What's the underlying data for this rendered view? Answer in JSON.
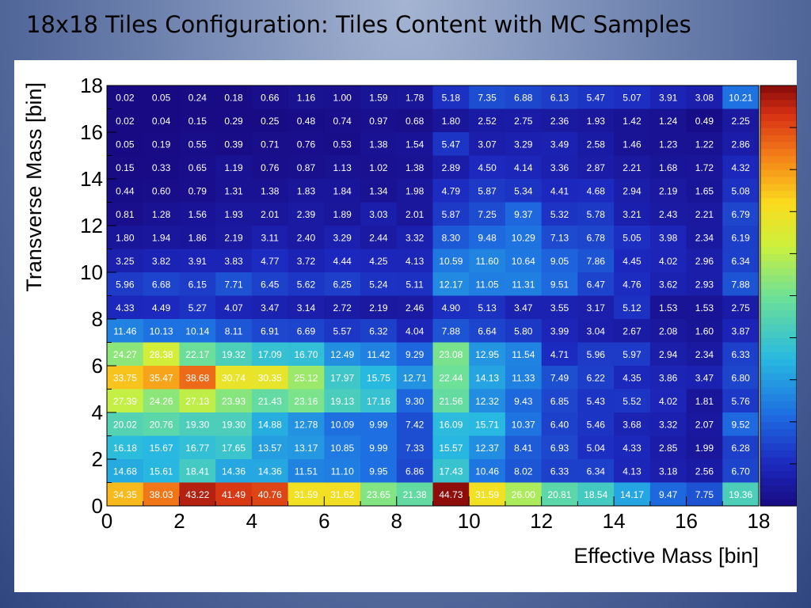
{
  "slide": {
    "title": "18x18 Tiles Configuration: Tiles Content with MC Samples"
  },
  "chart_data": {
    "type": "heatmap",
    "title": "",
    "xlabel": "Effective Mass [bin]",
    "ylabel": "Transverse Mass [bin]",
    "xlim": [
      0,
      18
    ],
    "ylim": [
      0,
      18
    ],
    "x_ticks": [
      0,
      2,
      4,
      6,
      8,
      10,
      12,
      14,
      16,
      18
    ],
    "y_ticks": [
      0,
      2,
      4,
      6,
      8,
      10,
      12,
      14,
      16,
      18
    ],
    "color_scale": "rainbow (dark blue = low, dark red = high)",
    "color_max": 45,
    "colorbar": "right",
    "rows_top_to_bottom": [
      [
        0.02,
        0.05,
        0.24,
        0.18,
        0.66,
        1.16,
        1.0,
        1.59,
        1.78,
        5.18,
        7.35,
        6.88,
        6.13,
        5.47,
        5.07,
        3.91,
        3.08,
        10.21
      ],
      [
        0.02,
        0.04,
        0.15,
        0.29,
        0.25,
        0.48,
        0.74,
        0.97,
        0.68,
        1.8,
        2.52,
        2.75,
        2.36,
        1.93,
        1.42,
        1.24,
        0.49,
        2.25
      ],
      [
        0.05,
        0.19,
        0.55,
        0.39,
        0.71,
        0.76,
        0.53,
        1.38,
        1.54,
        5.47,
        3.07,
        3.29,
        3.49,
        2.58,
        1.46,
        1.23,
        1.22,
        2.86
      ],
      [
        0.15,
        0.33,
        0.65,
        1.19,
        0.76,
        0.87,
        1.13,
        1.02,
        1.38,
        2.89,
        4.5,
        4.14,
        3.36,
        2.87,
        2.21,
        1.68,
        1.72,
        4.32
      ],
      [
        0.44,
        0.6,
        0.79,
        1.31,
        1.38,
        1.83,
        1.84,
        1.34,
        1.98,
        4.79,
        5.87,
        5.34,
        4.41,
        4.68,
        2.94,
        2.19,
        1.65,
        5.08
      ],
      [
        0.81,
        1.28,
        1.56,
        1.93,
        2.01,
        2.39,
        1.89,
        3.03,
        2.01,
        5.87,
        7.25,
        9.37,
        5.32,
        5.78,
        3.21,
        2.43,
        2.21,
        6.79
      ],
      [
        1.8,
        1.94,
        1.86,
        2.19,
        3.11,
        2.4,
        3.29,
        2.44,
        3.32,
        8.3,
        9.48,
        10.29,
        7.13,
        6.78,
        5.05,
        3.98,
        2.34,
        6.19
      ],
      [
        3.25,
        3.82,
        3.91,
        3.83,
        4.77,
        3.72,
        4.44,
        4.25,
        4.13,
        10.59,
        11.6,
        10.64,
        9.05,
        7.86,
        4.45,
        4.02,
        2.96,
        6.34
      ],
      [
        5.96,
        6.68,
        6.15,
        7.71,
        6.45,
        5.62,
        6.25,
        5.24,
        5.11,
        12.17,
        11.05,
        11.31,
        9.51,
        6.47,
        4.76,
        3.62,
        2.93,
        7.88
      ],
      [
        4.33,
        4.49,
        5.27,
        4.07,
        3.47,
        3.14,
        2.72,
        2.19,
        2.46,
        4.9,
        5.13,
        3.47,
        3.55,
        3.17,
        5.12,
        1.53,
        1.53,
        2.75
      ],
      [
        11.46,
        10.13,
        10.14,
        8.11,
        6.91,
        6.69,
        5.57,
        6.32,
        4.04,
        7.88,
        6.64,
        5.8,
        3.99,
        3.04,
        2.67,
        2.08,
        1.6,
        3.87
      ],
      [
        24.27,
        28.38,
        22.17,
        19.32,
        17.09,
        16.7,
        12.49,
        11.42,
        9.29,
        23.08,
        12.95,
        11.54,
        4.71,
        5.96,
        5.97,
        2.94,
        2.34,
        6.33
      ],
      [
        33.75,
        35.47,
        38.68,
        30.74,
        30.35,
        25.12,
        17.97,
        15.75,
        12.71,
        22.44,
        14.13,
        11.33,
        7.49,
        6.22,
        4.35,
        3.86,
        3.47,
        6.8
      ],
      [
        27.39,
        24.26,
        27.13,
        23.93,
        21.43,
        23.16,
        19.13,
        17.16,
        9.3,
        21.56,
        12.32,
        9.43,
        6.85,
        5.43,
        5.52,
        4.02,
        1.81,
        5.76
      ],
      [
        20.02,
        20.76,
        19.3,
        19.3,
        14.88,
        12.78,
        10.09,
        9.99,
        7.42,
        16.09,
        15.71,
        10.37,
        6.4,
        5.46,
        3.68,
        3.32,
        2.07,
        9.52
      ],
      [
        16.18,
        15.67,
        16.77,
        17.65,
        13.57,
        13.17,
        10.85,
        9.99,
        7.33,
        15.57,
        12.37,
        8.41,
        6.93,
        5.04,
        4.33,
        2.85,
        1.99,
        6.28
      ],
      [
        14.68,
        15.61,
        18.41,
        14.36,
        14.36,
        11.51,
        11.1,
        9.95,
        6.86,
        17.43,
        10.46,
        8.02,
        6.33,
        6.34,
        4.13,
        3.18,
        2.56,
        6.7
      ],
      [
        34.35,
        38.03,
        43.22,
        41.49,
        40.76,
        31.59,
        31.62,
        23.65,
        21.38,
        44.73,
        31.59,
        26.0,
        20.81,
        18.54,
        14.17,
        9.47,
        7.75,
        19.36
      ]
    ]
  }
}
